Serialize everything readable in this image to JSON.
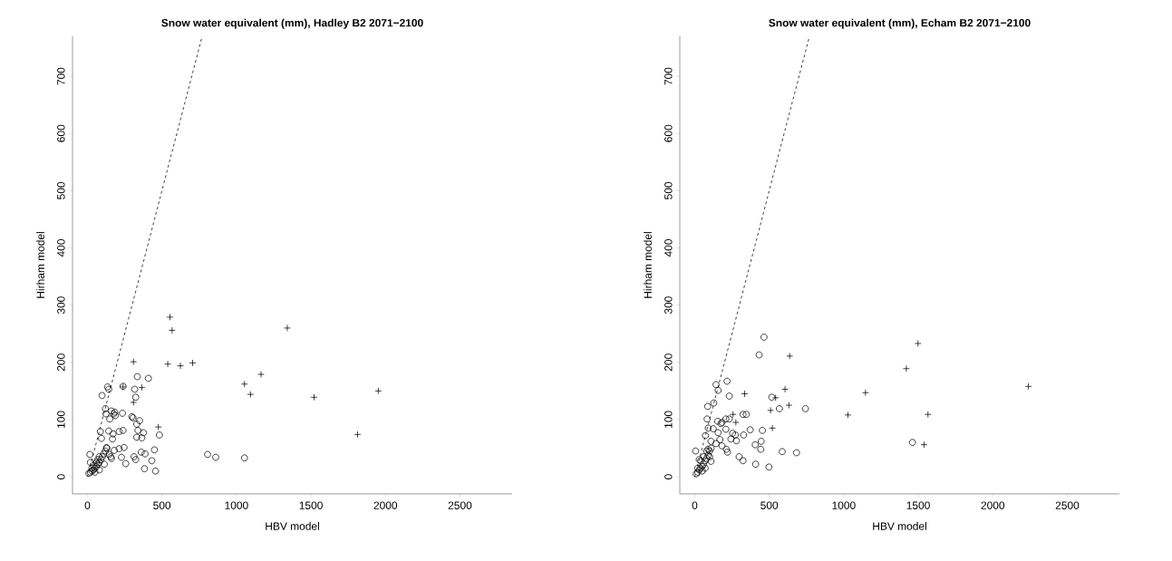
{
  "chart_data": [
    {
      "type": "scatter",
      "title": "Snow water equivalent (mm), Hadley B2 2071−2100",
      "xlabel": "HBV model",
      "ylabel": "Hirham model",
      "xlim": [
        -100,
        2850
      ],
      "ylim": [
        -30,
        770
      ],
      "xticks": [
        0,
        500,
        1000,
        1500,
        2000,
        2500
      ],
      "yticks": [
        0,
        100,
        200,
        300,
        400,
        500,
        600,
        700
      ],
      "series": [
        {
          "marker": "circle",
          "color": "#000000",
          "x": [
            335,
            409,
            135,
            143,
            239,
            317,
            98,
            324,
            121,
            161,
            183,
            124,
            176,
            150,
            235,
            187,
            298,
            306,
            350,
            331,
            339,
            376,
            331,
            365,
            87,
            94,
            143,
            172,
            168,
            213,
            239,
            483,
            128,
            180,
            213,
            246,
            146,
            157,
            161,
            228,
            257,
            313,
            324,
            361,
            387,
            450,
            432,
            383,
            457,
            17,
            806,
            861,
            1054,
            113,
            79,
            10,
            20,
            30,
            40,
            50,
            60,
            70,
            80,
            90,
            100,
            110,
            120,
            130,
            40,
            60,
            30,
            50,
            80,
            20,
            70
          ],
          "values": [
            175,
            172,
            157,
            153,
            158,
            153,
            142,
            139,
            119,
            115,
            113,
            110,
            110,
            101,
            111,
            107,
            105,
            103,
            98,
            92,
            81,
            77,
            69,
            68,
            79,
            67,
            80,
            75,
            66,
            79,
            81,
            73,
            51,
            46,
            49,
            51,
            39,
            35,
            32,
            34,
            23,
            35,
            30,
            43,
            40,
            47,
            28,
            14,
            10,
            39,
            39,
            34,
            33,
            22,
            35,
            6,
            8,
            10,
            12,
            15,
            18,
            22,
            25,
            30,
            35,
            40,
            45,
            50,
            20,
            25,
            15,
            8,
            12,
            25,
            30
          ]
        },
        {
          "marker": "cross",
          "color": "#000000",
          "x": [
            554,
            568,
            1341,
            309,
            539,
            624,
            706,
            1165,
            1054,
            1094,
            1521,
            1952,
            1813,
            239,
            365,
            309,
            476
          ],
          "values": [
            279,
            256,
            260,
            201,
            197,
            194,
            199,
            179,
            162,
            144,
            139,
            150,
            74,
            157,
            156,
            130,
            87
          ]
        },
        {
          "type": "line",
          "marker": "none",
          "line_style": "dashed",
          "color": "#000000",
          "x": [
            0,
            770
          ],
          "values": [
            0,
            770
          ]
        }
      ]
    },
    {
      "type": "scatter",
      "title": "Snow water equivalent (mm), Echam B2 2071−2100",
      "xlabel": "HBV model",
      "ylabel": "Hirham model",
      "xlim": [
        -100,
        2850
      ],
      "ylim": [
        -30,
        770
      ],
      "xticks": [
        0,
        500,
        1000,
        1500,
        2000,
        2500
      ],
      "yticks": [
        0,
        100,
        200,
        300,
        400,
        500,
        600,
        700
      ],
      "series": [
        {
          "marker": "circle",
          "color": "#000000",
          "x": [
            465,
            432,
            217,
            143,
            157,
            232,
            128,
            87,
            83,
            517,
            568,
            743,
            154,
            183,
            209,
            232,
            176,
            324,
            346,
            209,
            91,
            124,
            157,
            372,
            454,
            72,
            254,
            272,
            328,
            243,
            280,
            169,
            109,
            143,
            183,
            213,
            220,
            406,
            446,
            443,
            6,
            298,
            324,
            409,
            498,
            587,
            683,
            1461,
            109,
            10,
            20,
            30,
            40,
            50,
            60,
            70,
            80,
            90,
            100,
            110,
            60,
            40,
            30,
            70,
            50,
            20,
            80,
            90,
            100
          ],
          "values": [
            244,
            213,
            167,
            161,
            151,
            141,
            129,
            123,
            101,
            139,
            119,
            119,
            97,
            95,
            101,
            101,
            93,
            109,
            109,
            83,
            85,
            84,
            77,
            82,
            81,
            72,
            76,
            73,
            73,
            66,
            63,
            65,
            62,
            58,
            54,
            48,
            43,
            56,
            62,
            48,
            45,
            35,
            28,
            22,
            17,
            44,
            42,
            60,
            27,
            5,
            8,
            12,
            15,
            18,
            22,
            28,
            32,
            38,
            45,
            50,
            35,
            28,
            30,
            15,
            10,
            15,
            45,
            48,
            35
          ]
        },
        {
          "marker": "cross",
          "color": "#000000",
          "x": [
            1498,
            1420,
            637,
            335,
            606,
            543,
            1146,
            632,
            509,
            1028,
            1565,
            521,
            1539,
            257,
            276,
            2239
          ],
          "values": [
            233,
            189,
            211,
            145,
            153,
            138,
            147,
            125,
            116,
            108,
            109,
            85,
            56,
            109,
            95,
            158
          ]
        },
        {
          "type": "line",
          "marker": "none",
          "line_style": "dashed",
          "color": "#000000",
          "x": [
            0,
            770
          ],
          "values": [
            0,
            770
          ]
        }
      ]
    }
  ]
}
